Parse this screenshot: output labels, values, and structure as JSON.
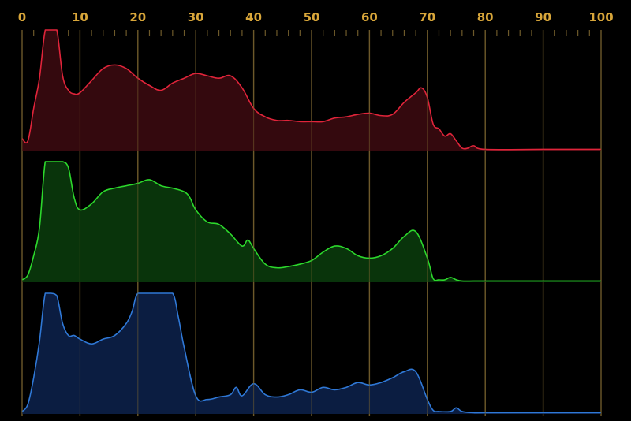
{
  "chart_data": {
    "type": "area",
    "title": "",
    "xlabel": "",
    "ylabel": "",
    "xlim": [
      0,
      100
    ],
    "ylim": [
      0,
      100
    ],
    "x_ticks": [
      "0",
      "10",
      "20",
      "30",
      "40",
      "50",
      "60",
      "70",
      "80",
      "90",
      "100"
    ],
    "grid": true,
    "legend": "none",
    "colors": {
      "background": "#000000",
      "grid": "#6e5a2a",
      "tick_labels": "#d8a63a",
      "red": "#e0243a",
      "red_fill": "#3a0a10",
      "green": "#2cd82c",
      "green_fill": "#0a3a0c",
      "blue": "#2f78d6",
      "blue_fill": "#0c2048"
    },
    "series": [
      {
        "color_key": "red",
        "x": [
          0,
          1,
          2,
          3,
          4,
          5,
          6,
          7,
          8,
          9,
          10,
          12,
          14,
          16,
          18,
          20,
          22,
          24,
          26,
          28,
          30,
          32,
          34,
          36,
          38,
          40,
          42,
          44,
          46,
          48,
          50,
          52,
          54,
          56,
          58,
          60,
          62,
          64,
          66,
          68,
          69,
          70,
          71,
          72,
          73,
          74,
          75,
          76,
          77,
          78,
          80,
          90,
          100
        ],
        "values": [
          10,
          8,
          35,
          60,
          100,
          100,
          100,
          62,
          50,
          47,
          48,
          58,
          68,
          71,
          68,
          60,
          54,
          50,
          56,
          60,
          64,
          62,
          60,
          62,
          52,
          35,
          28,
          25,
          25,
          24,
          24,
          24,
          27,
          28,
          30,
          31,
          29,
          30,
          40,
          48,
          52,
          44,
          22,
          18,
          12,
          14,
          8,
          2,
          2,
          4,
          1,
          1,
          1
        ]
      },
      {
        "color_key": "green",
        "x": [
          0,
          1,
          2,
          3,
          4,
          5,
          6,
          7,
          8,
          9,
          10,
          12,
          14,
          16,
          18,
          20,
          22,
          24,
          26,
          28,
          29,
          30,
          32,
          34,
          36,
          38,
          39,
          40,
          42,
          44,
          46,
          48,
          50,
          52,
          54,
          56,
          58,
          60,
          62,
          64,
          66,
          68,
          70,
          71,
          72,
          73,
          74,
          75,
          76,
          78,
          80,
          90,
          100
        ],
        "values": [
          2,
          6,
          22,
          45,
          100,
          100,
          100,
          100,
          95,
          70,
          60,
          65,
          75,
          78,
          80,
          82,
          85,
          80,
          78,
          75,
          70,
          60,
          50,
          48,
          40,
          30,
          35,
          28,
          15,
          12,
          13,
          15,
          18,
          25,
          30,
          28,
          22,
          20,
          22,
          28,
          38,
          42,
          20,
          3,
          2,
          2,
          4,
          2,
          1,
          1,
          1,
          1,
          1
        ]
      },
      {
        "color_key": "blue",
        "x": [
          0,
          1,
          2,
          3,
          4,
          5,
          6,
          7,
          8,
          9,
          10,
          12,
          14,
          16,
          18,
          19,
          20,
          22,
          24,
          26,
          27,
          28,
          30,
          32,
          34,
          36,
          37,
          38,
          40,
          42,
          44,
          46,
          48,
          50,
          52,
          54,
          56,
          58,
          60,
          62,
          64,
          66,
          68,
          70,
          71,
          72,
          74,
          75,
          76,
          78,
          80,
          90,
          100
        ],
        "values": [
          2,
          8,
          30,
          60,
          100,
          100,
          98,
          75,
          65,
          65,
          62,
          58,
          62,
          65,
          75,
          85,
          100,
          100,
          100,
          100,
          80,
          55,
          15,
          12,
          14,
          16,
          22,
          15,
          25,
          16,
          14,
          16,
          20,
          18,
          22,
          20,
          22,
          26,
          24,
          26,
          30,
          35,
          35,
          12,
          3,
          2,
          2,
          5,
          2,
          1,
          1,
          1,
          1
        ]
      }
    ]
  }
}
